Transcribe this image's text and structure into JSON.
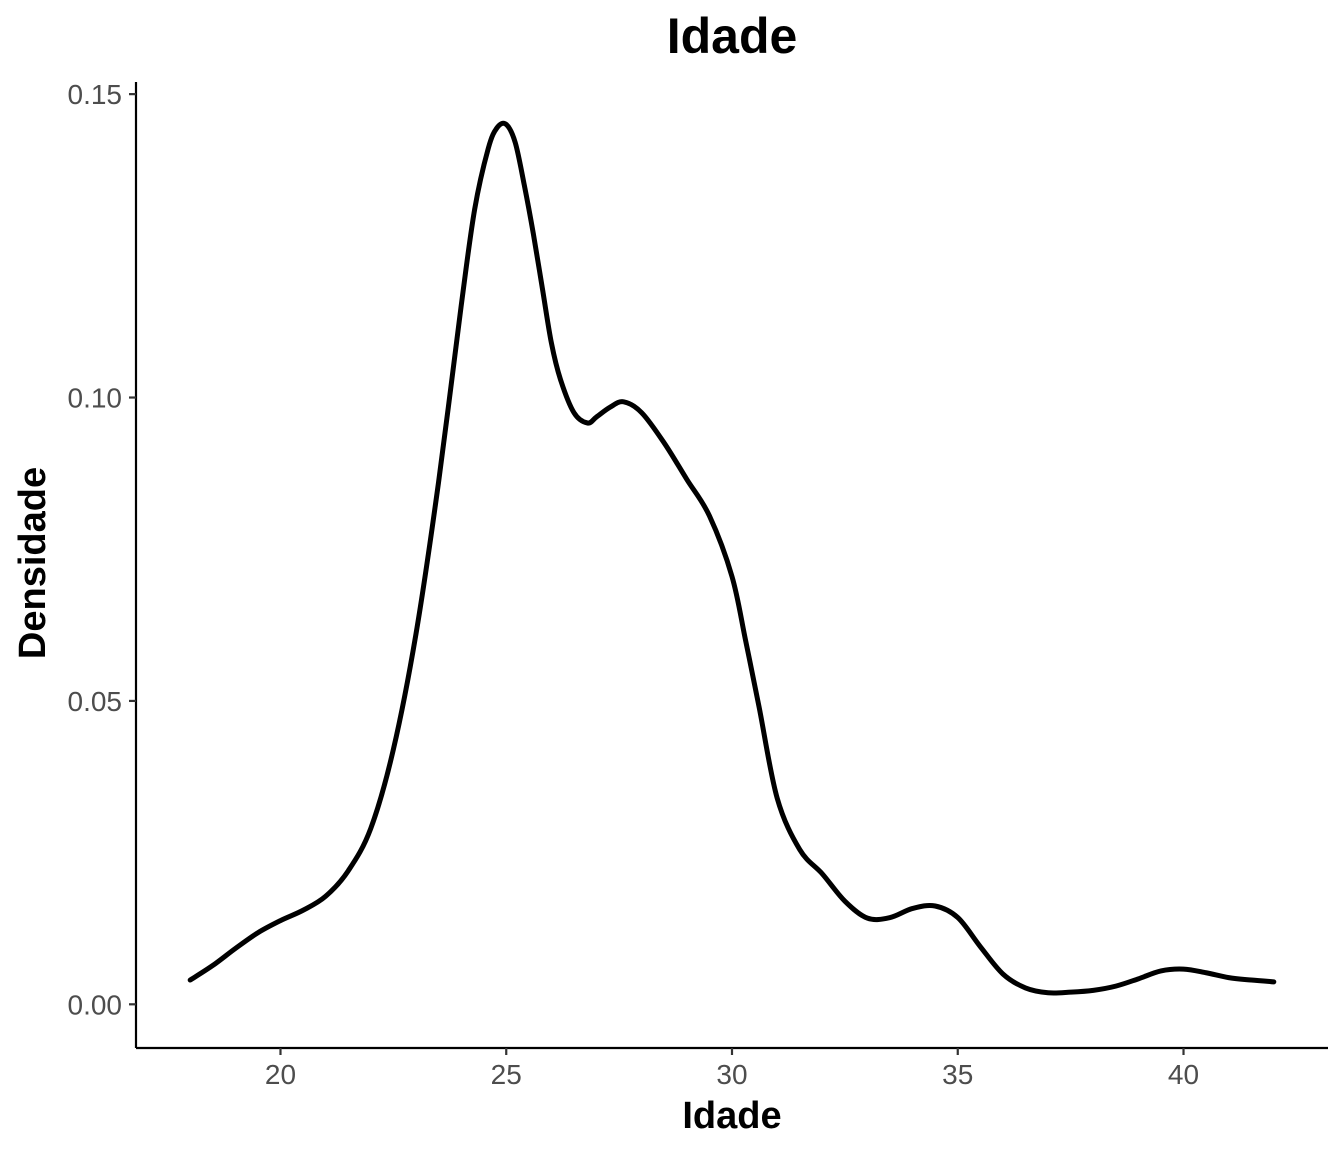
{
  "chart_data": {
    "type": "line",
    "title": "Idade",
    "xlabel": "Idade",
    "ylabel": "Densidade",
    "xlim": [
      16.8,
      43.2
    ],
    "ylim": [
      -0.0072,
      0.152
    ],
    "x_ticks": [
      20,
      25,
      30,
      35,
      40
    ],
    "x_tick_labels": [
      "20",
      "25",
      "30",
      "35",
      "40"
    ],
    "y_ticks": [
      0.0,
      0.05,
      0.1,
      0.15
    ],
    "y_tick_labels": [
      "0.00",
      "0.05",
      "0.10",
      "0.15"
    ],
    "grid": false,
    "legend": "none",
    "line_color": "#000000",
    "series": [
      {
        "x": [
          18.0,
          18.5,
          19.0,
          19.5,
          20.0,
          20.5,
          21.0,
          21.5,
          22.0,
          22.5,
          23.0,
          23.5,
          24.0,
          24.3,
          24.6,
          24.8,
          25.0,
          25.2,
          25.4,
          25.6,
          25.8,
          26.0,
          26.2,
          26.5,
          26.8,
          27.0,
          27.3,
          27.6,
          28.0,
          28.5,
          29.0,
          29.5,
          30.0,
          30.3,
          30.6,
          31.0,
          31.5,
          32.0,
          32.5,
          33.0,
          33.5,
          34.0,
          34.5,
          35.0,
          35.5,
          36.0,
          36.5,
          37.0,
          37.5,
          38.0,
          38.5,
          39.0,
          39.5,
          40.0,
          40.5,
          41.0,
          41.5,
          42.0
        ],
        "y": [
          0.004,
          0.0064,
          0.0092,
          0.0118,
          0.0138,
          0.0155,
          0.0178,
          0.022,
          0.029,
          0.042,
          0.061,
          0.086,
          0.115,
          0.131,
          0.141,
          0.1445,
          0.145,
          0.142,
          0.135,
          0.127,
          0.118,
          0.109,
          0.103,
          0.0975,
          0.0958,
          0.0968,
          0.0984,
          0.0993,
          0.0975,
          0.0925,
          0.0865,
          0.0805,
          0.0705,
          0.06,
          0.049,
          0.034,
          0.0255,
          0.0215,
          0.017,
          0.0142,
          0.0143,
          0.0158,
          0.0162,
          0.0143,
          0.0095,
          0.005,
          0.0027,
          0.0019,
          0.002,
          0.0023,
          0.003,
          0.0042,
          0.0055,
          0.0058,
          0.0052,
          0.0044,
          0.004,
          0.0037
        ]
      }
    ]
  }
}
